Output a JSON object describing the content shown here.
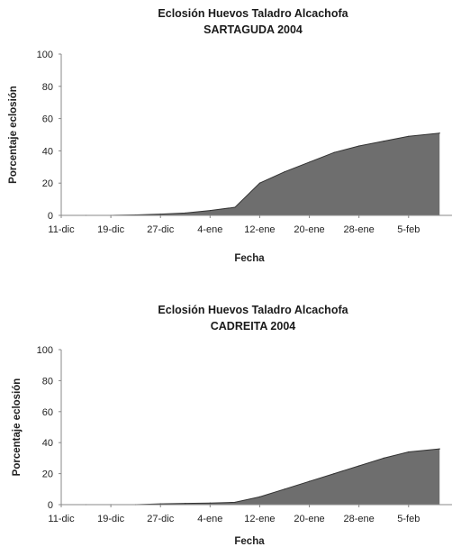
{
  "chart_data": [
    {
      "type": "area",
      "title": "Eclosión Huevos Taladro Alcachofa",
      "subtitle": "SARTAGUDA 2004",
      "xlabel": "Fecha",
      "ylabel": "Porcentaje eclosión",
      "ylim": [
        0,
        100
      ],
      "yticks": [
        0,
        20,
        40,
        60,
        80,
        100
      ],
      "categories": [
        "11-dic",
        "19-dic",
        "27-dic",
        "4-ene",
        "12-ene",
        "20-ene",
        "28-ene",
        "5-feb"
      ],
      "grid": false,
      "legend": "none",
      "colors": {
        "fill": "#6e6e6e",
        "stroke": "#333333"
      },
      "x": [
        "11-dic",
        "15-dic",
        "19-dic",
        "23-dic",
        "27-dic",
        "31-dic",
        "4-ene",
        "8-ene",
        "12-ene",
        "16-ene",
        "20-ene",
        "24-ene",
        "28-ene",
        "1-feb",
        "5-feb",
        "10-feb"
      ],
      "values": [
        0,
        0,
        0,
        0.3,
        0.8,
        1.5,
        3,
        5,
        20,
        27,
        33,
        39,
        43,
        46,
        49,
        51
      ]
    },
    {
      "type": "area",
      "title": "Eclosión Huevos Taladro Alcachofa",
      "subtitle": "CADREITA 2004",
      "xlabel": "Fecha",
      "ylabel": "Porcentaje eclosión",
      "ylim": [
        0,
        100
      ],
      "yticks": [
        0,
        20,
        40,
        60,
        80,
        100
      ],
      "categories": [
        "11-dic",
        "19-dic",
        "27-dic",
        "4-ene",
        "12-ene",
        "20-ene",
        "28-ene",
        "5-feb"
      ],
      "grid": false,
      "legend": "none",
      "colors": {
        "fill": "#6e6e6e",
        "stroke": "#333333"
      },
      "x": [
        "11-dic",
        "15-dic",
        "19-dic",
        "23-dic",
        "27-dic",
        "31-dic",
        "4-ene",
        "8-ene",
        "12-ene",
        "16-ene",
        "20-ene",
        "24-ene",
        "28-ene",
        "1-feb",
        "5-feb",
        "10-feb"
      ],
      "values": [
        0,
        0,
        0,
        0,
        0.5,
        0.8,
        1,
        1.5,
        5,
        10,
        15,
        20,
        25,
        30,
        34,
        36
      ]
    }
  ]
}
